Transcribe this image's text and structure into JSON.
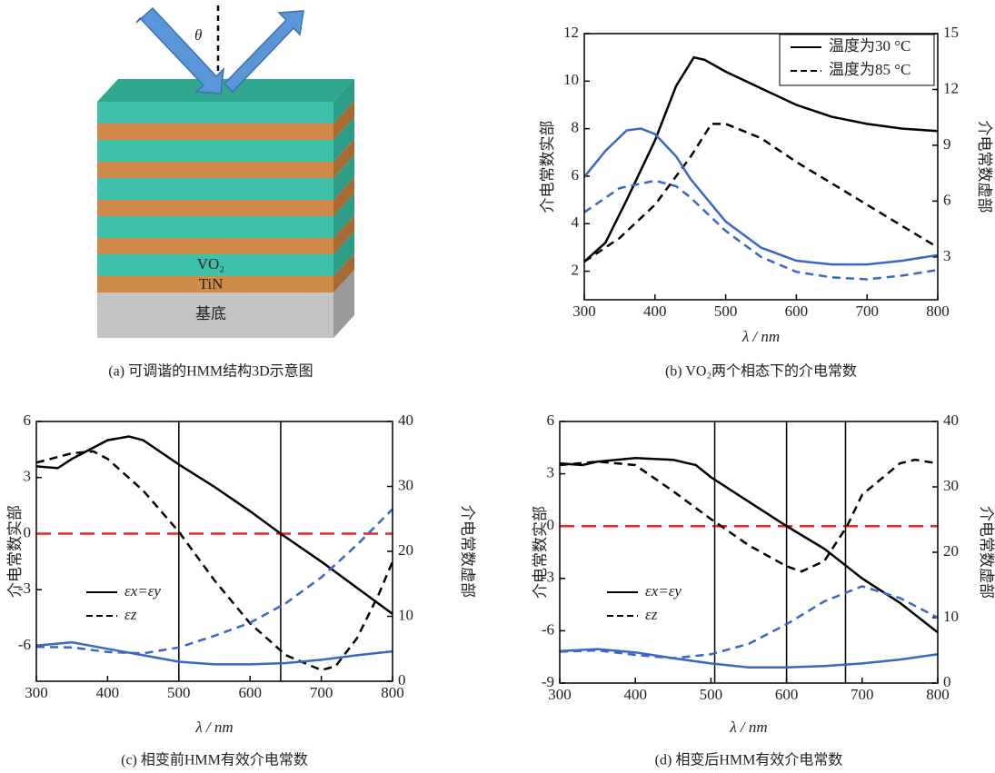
{
  "diagram": {
    "angle_label": "θ",
    "layer_label": "VO₂",
    "metal_label": "TiN",
    "substrate_label": "基底",
    "caption": "(a) 可调谐的HMM结构3D示意图"
  },
  "chart_data": [
    {
      "type": "line",
      "caption": "(b) VO₂两个相态下的介电常数",
      "xlabel": "λ / nm",
      "ylabel": "介电常数实部",
      "y2label": "介电常数虚部",
      "xlim": [
        300,
        800
      ],
      "xticks": [
        300,
        400,
        500,
        600,
        700,
        800
      ],
      "ylim": [
        0.8,
        12
      ],
      "yticks": [
        2,
        4,
        6,
        8,
        10,
        12
      ],
      "y2lim": [
        0.7,
        15
      ],
      "y2ticks": [
        3,
        6,
        9,
        12,
        15
      ],
      "legend": "upper right",
      "series": [
        {
          "name": "温度为30 °C",
          "color": "#000000",
          "dash": false,
          "axis": "y",
          "x": [
            300,
            330,
            360,
            400,
            430,
            455,
            470,
            500,
            550,
            600,
            650,
            700,
            750,
            800
          ],
          "values": [
            2.4,
            3.2,
            5,
            7.5,
            9.8,
            11,
            10.9,
            10.4,
            9.7,
            9.0,
            8.5,
            8.2,
            8.0,
            7.9
          ]
        },
        {
          "name": "温度为85 °C",
          "color": "#000000",
          "dash": true,
          "axis": "y",
          "x": [
            300,
            350,
            400,
            450,
            480,
            500,
            550,
            600,
            650,
            700,
            750,
            800
          ],
          "values": [
            2.4,
            3.4,
            4.8,
            6.8,
            8.2,
            8.2,
            7.6,
            6.6,
            5.7,
            4.8,
            3.9,
            3.0
          ]
        },
        {
          "color": "#3a66c4",
          "dash": false,
          "axis": "y2",
          "x": [
            300,
            330,
            360,
            380,
            400,
            430,
            450,
            500,
            550,
            600,
            650,
            700,
            750,
            800
          ],
          "values": [
            7.3,
            8.7,
            9.8,
            9.9,
            9.6,
            8.4,
            7.2,
            4.9,
            3.5,
            2.8,
            2.6,
            2.6,
            2.8,
            3.1
          ]
        },
        {
          "color": "#3a66c4",
          "dash": true,
          "axis": "y2",
          "x": [
            300,
            350,
            400,
            430,
            450,
            500,
            550,
            600,
            650,
            700,
            750,
            800
          ],
          "values": [
            5.4,
            6.7,
            7.1,
            6.8,
            6.2,
            4.4,
            3.0,
            2.2,
            1.9,
            1.8,
            2.0,
            2.3
          ]
        }
      ]
    },
    {
      "type": "line",
      "caption": "(c) 相变前HMM有效介电常数",
      "xlabel": "λ / nm",
      "ylabel": "介电常数实部",
      "y2label": "介电常数虚部",
      "xlim": [
        300,
        800
      ],
      "xticks": [
        300,
        400,
        500,
        600,
        700,
        800
      ],
      "ylim": [
        -7.9,
        6
      ],
      "yticks": [
        -6,
        -3,
        0,
        3,
        6
      ],
      "y2lim": [
        0,
        40
      ],
      "y2ticks": [
        0,
        10,
        20,
        30,
        40
      ],
      "vlines": [
        500,
        643
      ],
      "hline": 0,
      "hline_color": "#e8262a",
      "legend": "center left",
      "series": [
        {
          "name": "εx=εy",
          "color": "#000000",
          "dash": false,
          "axis": "y",
          "x": [
            300,
            330,
            350,
            400,
            430,
            450,
            500,
            550,
            600,
            643,
            700,
            750,
            800
          ],
          "values": [
            3.6,
            3.5,
            4.0,
            5.0,
            5.2,
            5.0,
            3.7,
            2.5,
            1.2,
            0,
            -1.5,
            -2.9,
            -4.3
          ]
        },
        {
          "name": "εz",
          "color": "#000000",
          "dash": true,
          "axis": "y",
          "x": [
            300,
            350,
            380,
            400,
            450,
            500,
            550,
            600,
            650,
            700,
            720,
            750,
            780,
            800
          ],
          "values": [
            3.8,
            4.3,
            4.4,
            4.0,
            2.3,
            0.1,
            -2.5,
            -4.8,
            -6.5,
            -7.3,
            -7.1,
            -5.6,
            -3.3,
            -1.5
          ]
        },
        {
          "color": "#3a66c4",
          "dash": false,
          "axis": "y2",
          "x": [
            300,
            350,
            400,
            450,
            500,
            550,
            600,
            650,
            700,
            750,
            800
          ],
          "values": [
            5.5,
            6.0,
            5.0,
            4.0,
            3.0,
            2.6,
            2.6,
            2.8,
            3.3,
            4.0,
            4.6
          ]
        },
        {
          "color": "#3a66c4",
          "dash": true,
          "axis": "y2",
          "x": [
            300,
            350,
            400,
            450,
            500,
            550,
            600,
            650,
            700,
            750,
            800
          ],
          "values": [
            5.3,
            5.2,
            4.5,
            4.3,
            5.2,
            7.0,
            9.0,
            12,
            16,
            21,
            26.5
          ]
        }
      ]
    },
    {
      "type": "line",
      "caption": "(d) 相变后HMM有效介电常数",
      "xlabel": "λ / nm",
      "ylabel": "介电常数实部",
      "y2label": "介电常数虚部",
      "xlim": [
        300,
        800
      ],
      "xticks": [
        300,
        400,
        500,
        600,
        700,
        800
      ],
      "ylim": [
        -9,
        6
      ],
      "yticks": [
        -9,
        -6,
        -3,
        0,
        3,
        6
      ],
      "y2lim": [
        0,
        40
      ],
      "y2ticks": [
        0,
        10,
        20,
        30,
        40
      ],
      "vlines": [
        505,
        600,
        678
      ],
      "hline": 0,
      "hline_color": "#e8262a",
      "legend": "center left",
      "series": [
        {
          "name": "εx=εy",
          "color": "#000000",
          "dash": false,
          "axis": "y",
          "x": [
            300,
            330,
            350,
            400,
            450,
            480,
            500,
            550,
            600,
            650,
            700,
            750,
            800
          ],
          "values": [
            3.6,
            3.5,
            3.7,
            3.9,
            3.8,
            3.5,
            2.8,
            1.4,
            0,
            -1.3,
            -3.0,
            -4.4,
            -6.1
          ]
        },
        {
          "name": "εz",
          "color": "#000000",
          "dash": true,
          "axis": "y",
          "x": [
            300,
            350,
            400,
            450,
            500,
            550,
            600,
            620,
            650,
            680,
            700,
            750,
            770,
            800
          ],
          "values": [
            3.5,
            3.7,
            3.5,
            2.0,
            0.4,
            -1.1,
            -2.3,
            -2.6,
            -2.0,
            0,
            1.8,
            3.6,
            3.8,
            3.6
          ]
        },
        {
          "color": "#3a66c4",
          "dash": false,
          "axis": "y2",
          "x": [
            300,
            350,
            400,
            450,
            500,
            550,
            600,
            650,
            700,
            750,
            800
          ],
          "values": [
            4.9,
            5.2,
            4.7,
            3.8,
            3.0,
            2.4,
            2.4,
            2.6,
            3.0,
            3.6,
            4.4
          ]
        },
        {
          "color": "#3a66c4",
          "dash": true,
          "axis": "y2",
          "x": [
            300,
            350,
            400,
            450,
            500,
            550,
            600,
            650,
            700,
            750,
            800
          ],
          "values": [
            4.8,
            5.0,
            4.3,
            3.8,
            4.4,
            6.0,
            9.0,
            12.5,
            14.8,
            13.0,
            10.0
          ]
        }
      ]
    }
  ]
}
